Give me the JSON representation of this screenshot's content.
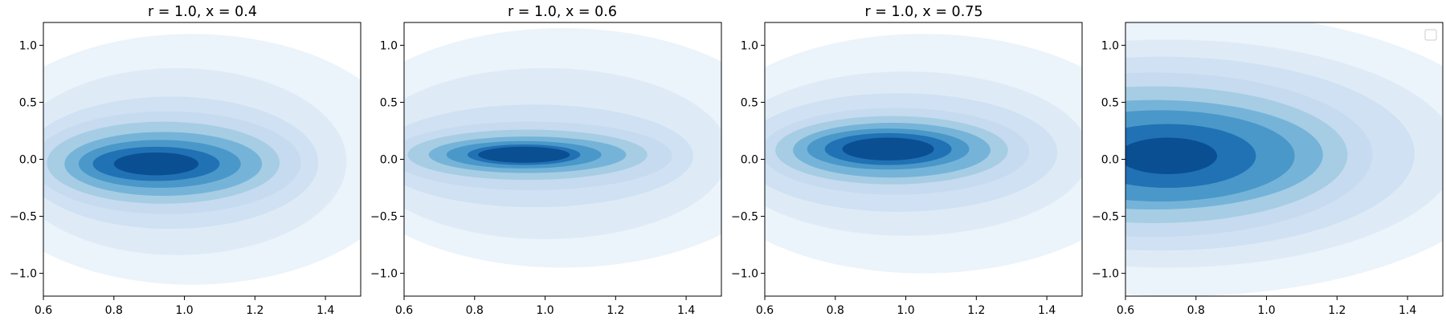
{
  "chart_data": [
    {
      "type": "contour",
      "title": "r = 1.0, x = 0.4",
      "xlim": [
        0.6,
        1.5
      ],
      "ylim": [
        -1.2,
        1.2
      ],
      "xticks": [
        "0.6",
        "0.8",
        "1.0",
        "1.2",
        "1.4"
      ],
      "yticks": [
        "−1.0",
        "−0.5",
        "0.0",
        "0.5",
        "1.0"
      ],
      "colormap": "Blues",
      "levels": 10,
      "peak": {
        "x": 0.92,
        "y": -0.04
      },
      "legend": false
    },
    {
      "type": "contour",
      "title": "r = 1.0, x = 0.6",
      "xlim": [
        0.6,
        1.5
      ],
      "ylim": [
        -1.2,
        1.2
      ],
      "xticks": [
        "0.6",
        "0.8",
        "1.0",
        "1.2",
        "1.4"
      ],
      "yticks": [
        "−1.0",
        "−0.5",
        "0.0",
        "0.5",
        "1.0"
      ],
      "colormap": "Blues",
      "levels": 10,
      "peak": {
        "x": 0.94,
        "y": 0.04
      },
      "legend": false
    },
    {
      "type": "contour",
      "title": "r = 1.0, x = 0.75",
      "xlim": [
        0.6,
        1.5
      ],
      "ylim": [
        -1.2,
        1.2
      ],
      "xticks": [
        "0.6",
        "0.8",
        "1.0",
        "1.2",
        "1.4"
      ],
      "yticks": [
        "−1.0",
        "−0.5",
        "0.0",
        "0.5",
        "1.0"
      ],
      "colormap": "Blues",
      "levels": 10,
      "peak": {
        "x": 0.95,
        "y": 0.09
      },
      "legend": false
    },
    {
      "type": "contour",
      "title": "",
      "xlim": [
        0.6,
        1.5
      ],
      "ylim": [
        -1.2,
        1.2
      ],
      "xticks": [
        "0.6",
        "0.8",
        "1.0",
        "1.2",
        "1.4"
      ],
      "yticks": [
        "−1.0",
        "−0.5",
        "0.0",
        "0.5",
        "1.0"
      ],
      "colormap": "Blues",
      "levels": 10,
      "peak": {
        "x": 0.72,
        "y": 0.03
      },
      "legend": true,
      "legend_position": "top-right"
    }
  ],
  "colors": {
    "levels": [
      "#f7fbff",
      "#ebf3fb",
      "#deebf7",
      "#cfe1f2",
      "#c6dbef",
      "#a6cde4",
      "#75b4d8",
      "#4a98c9",
      "#2171b5",
      "#0b4f93"
    ]
  }
}
